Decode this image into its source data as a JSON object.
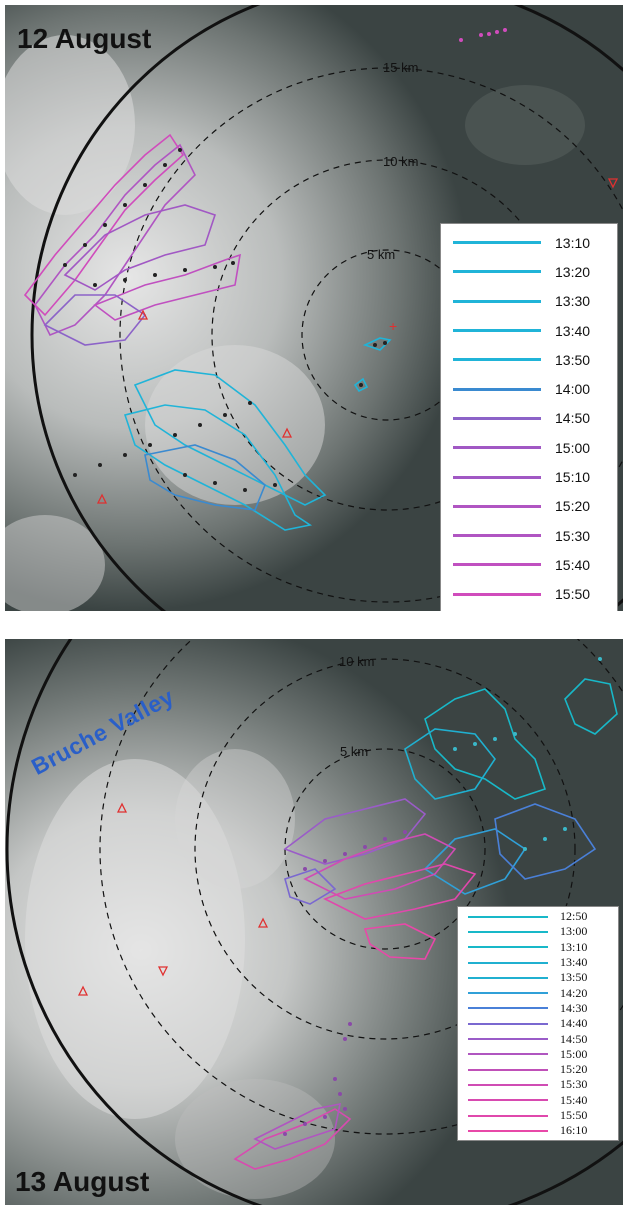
{
  "top_panel": {
    "date": "12 August",
    "rings": [
      "15 km",
      "10 km",
      "5 km"
    ],
    "legend": [
      {
        "time": "13:10",
        "color": "#20b4d8"
      },
      {
        "time": "13:20",
        "color": "#20b4d8"
      },
      {
        "time": "13:30",
        "color": "#20b4d8"
      },
      {
        "time": "13:40",
        "color": "#20b4d8"
      },
      {
        "time": "13:50",
        "color": "#20b4d8"
      },
      {
        "time": "14:00",
        "color": "#3a8ad0"
      },
      {
        "time": "14:50",
        "color": "#8c63c8"
      },
      {
        "time": "15:00",
        "color": "#a158c4"
      },
      {
        "time": "15:10",
        "color": "#a158c4"
      },
      {
        "time": "15:20",
        "color": "#b055c2"
      },
      {
        "time": "15:30",
        "color": "#b055c2"
      },
      {
        "time": "15:40",
        "color": "#c050c0"
      },
      {
        "time": "15:50",
        "color": "#d04cbc"
      }
    ]
  },
  "bottom_panel": {
    "date": "13 August",
    "valley_label": "Bruche Valley",
    "rings": [
      "10 km",
      "5 km"
    ],
    "legend": [
      {
        "time": "12:50",
        "color": "#18b8c8"
      },
      {
        "time": "13:00",
        "color": "#18b8c8"
      },
      {
        "time": "13:10",
        "color": "#18b8c8"
      },
      {
        "time": "13:40",
        "color": "#20b0d0"
      },
      {
        "time": "13:50",
        "color": "#20b0d0"
      },
      {
        "time": "14:20",
        "color": "#30a0d8"
      },
      {
        "time": "14:30",
        "color": "#4a80d8"
      },
      {
        "time": "14:40",
        "color": "#7a68d0"
      },
      {
        "time": "14:50",
        "color": "#9a5cc8"
      },
      {
        "time": "15:00",
        "color": "#b056c0"
      },
      {
        "time": "15:20",
        "color": "#c050b8"
      },
      {
        "time": "15:30",
        "color": "#d04cb4"
      },
      {
        "time": "15:40",
        "color": "#d84ab0"
      },
      {
        "time": "15:50",
        "color": "#e048ac"
      },
      {
        "time": "16:10",
        "color": "#e848a8"
      }
    ]
  }
}
